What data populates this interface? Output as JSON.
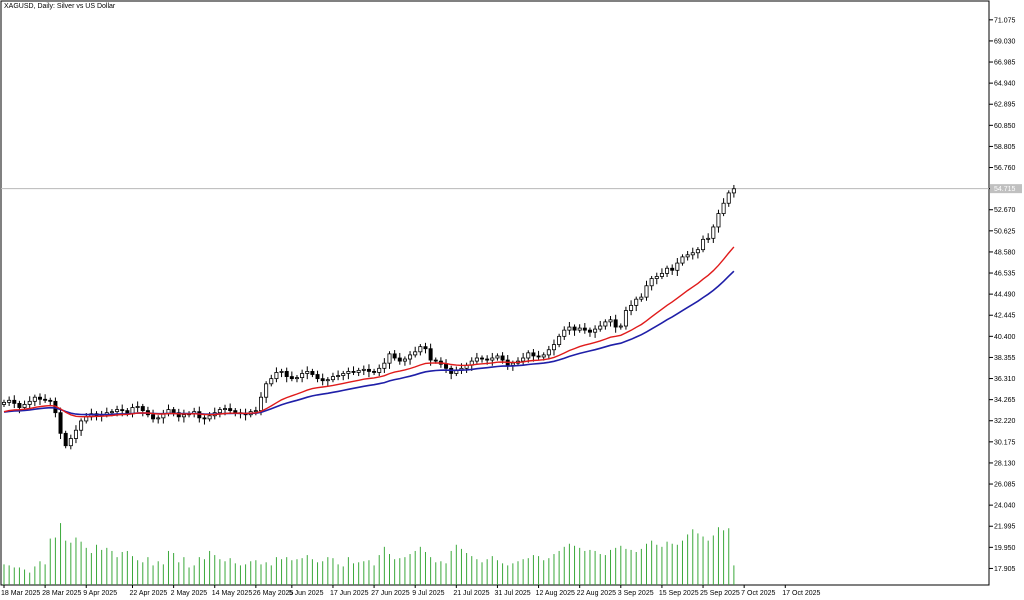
{
  "window": {
    "symbol_label": "XAGUSD, Daily:  Silver vs US Dollar"
  },
  "colors": {
    "background": "#ffffff",
    "frame": "#000000",
    "candle_outline": "#000000",
    "candle_bull_fill": "#ffffff",
    "candle_bear_fill": "#000000",
    "ma_fast": "#e01b1b",
    "ma_slow": "#1f1fa8",
    "volume": "#3aa83a",
    "last_price_line": "#b8b8b8",
    "last_price_tag_bg": "#c0c0c0",
    "last_price_tag_text": "#ffffff"
  },
  "chart_data": {
    "type": "candlestick",
    "symbol": "XAGUSD",
    "timeframe": "Daily",
    "ylim": [
      17.0,
      72.0
    ],
    "y_ticks": [
      "71.075",
      "69.030",
      "66.985",
      "64.940",
      "62.895",
      "60.850",
      "58.805",
      "56.760",
      "54.715",
      "52.670",
      "50.625",
      "48.580",
      "46.535",
      "44.490",
      "42.445",
      "40.400",
      "38.355",
      "36.310",
      "34.265",
      "32.220",
      "30.175",
      "28.130",
      "26.085",
      "24.040",
      "21.995",
      "19.950",
      "17.905"
    ],
    "last_price": "54.715",
    "x_ticks": [
      {
        "label": "18 Mar 2025",
        "index": 0
      },
      {
        "label": "28 Mar 2025",
        "index": 8
      },
      {
        "label": "9 Apr 2025",
        "index": 16
      },
      {
        "label": "22 Apr 2025",
        "index": 25
      },
      {
        "label": "2 May 2025",
        "index": 33
      },
      {
        "label": "14 May 2025",
        "index": 41
      },
      {
        "label": "26 May 2025",
        "index": 49
      },
      {
        "label": "5 Jun 2025",
        "index": 56
      },
      {
        "label": "17 Jun 2025",
        "index": 64
      },
      {
        "label": "27 Jun 2025",
        "index": 72
      },
      {
        "label": "9 Jul 2025",
        "index": 80
      },
      {
        "label": "21 Jul 2025",
        "index": 88
      },
      {
        "label": "31 Jul 2025",
        "index": 96
      },
      {
        "label": "12 Aug 2025",
        "index": 104
      },
      {
        "label": "22 Aug 2025",
        "index": 112
      },
      {
        "label": "3 Sep 2025",
        "index": 120
      },
      {
        "label": "15 Sep 2025",
        "index": 128
      },
      {
        "label": "25 Sep 2025",
        "index": 136
      },
      {
        "label": "7 Oct 2025",
        "index": 144
      },
      {
        "label": "17 Oct 2025",
        "index": 152
      }
    ],
    "close": [
      34.0,
      34.2,
      33.9,
      33.5,
      33.8,
      34.1,
      34.5,
      34.3,
      34.2,
      34.1,
      33.0,
      31.0,
      29.8,
      30.5,
      31.3,
      32.2,
      32.6,
      32.9,
      32.7,
      32.8,
      33.0,
      33.1,
      33.3,
      33.2,
      32.9,
      33.5,
      33.6,
      33.2,
      32.8,
      32.4,
      32.5,
      32.9,
      33.3,
      33.0,
      32.6,
      32.8,
      32.9,
      33.1,
      32.5,
      32.4,
      32.7,
      33.0,
      33.3,
      33.4,
      33.2,
      33.0,
      32.9,
      32.8,
      33.1,
      33.2,
      34.5,
      35.8,
      36.3,
      36.9,
      37.0,
      36.5,
      36.3,
      36.4,
      36.8,
      37.0,
      36.7,
      36.3,
      36.1,
      36.2,
      36.5,
      36.6,
      36.8,
      37.0,
      36.9,
      37.1,
      37.2,
      37.0,
      36.9,
      37.3,
      37.8,
      38.7,
      38.3,
      38.0,
      38.2,
      38.6,
      38.9,
      39.4,
      39.2,
      38.1,
      38.0,
      37.7,
      37.3,
      36.8,
      37.1,
      37.3,
      37.6,
      38.0,
      38.3,
      38.2,
      38.1,
      38.3,
      38.5,
      38.1,
      37.6,
      37.8,
      38.0,
      38.3,
      38.8,
      38.5,
      38.4,
      38.6,
      39.1,
      39.6,
      40.4,
      41.0,
      41.3,
      41.0,
      41.2,
      41.0,
      40.8,
      41.1,
      41.4,
      41.8,
      42.0,
      41.3,
      41.4,
      42.9,
      43.4,
      44.0,
      44.2,
      45.3,
      46.0,
      46.2,
      46.5,
      47.0,
      46.8,
      47.5,
      48.1,
      48.3,
      48.5,
      48.8,
      49.8,
      49.9,
      51.0,
      52.3,
      53.3,
      54.3,
      54.7
    ],
    "volume": [
      18.3,
      18.2,
      18.0,
      18.0,
      17.8,
      17.5,
      18.1,
      18.6,
      18.3,
      20.8,
      20.9,
      22.3,
      20.6,
      20.4,
      20.9,
      20.5,
      19.9,
      19.4,
      20.2,
      19.7,
      19.9,
      19.6,
      19.0,
      19.5,
      19.6,
      19.1,
      18.7,
      18.5,
      19.0,
      18.2,
      18.6,
      18.3,
      19.6,
      19.4,
      18.5,
      19.0,
      18.0,
      18.2,
      19.0,
      18.8,
      19.6,
      19.2,
      18.8,
      18.6,
      18.9,
      18.4,
      18.2,
      18.3,
      18.6,
      18.7,
      18.3,
      18.5,
      18.2,
      19.0,
      18.8,
      19.0,
      18.7,
      18.8,
      18.9,
      19.2,
      18.8,
      18.5,
      18.6,
      19.0,
      18.9,
      18.3,
      18.1,
      19.0,
      18.4,
      18.5,
      18.6,
      18.7,
      18.2,
      19.2,
      20.0,
      19.3,
      18.8,
      18.9,
      19.0,
      19.3,
      19.6,
      20.0,
      19.5,
      19.0,
      18.5,
      18.6,
      18.4,
      19.6,
      20.2,
      19.8,
      19.4,
      19.1,
      18.8,
      18.5,
      18.8,
      19.1,
      18.7,
      18.4,
      18.2,
      18.4,
      18.6,
      18.8,
      18.9,
      19.2,
      19.1,
      18.7,
      18.9,
      19.3,
      19.6,
      20.0,
      20.3,
      20.1,
      19.9,
      19.6,
      19.7,
      19.6,
      19.3,
      19.2,
      19.7,
      19.9,
      20.1,
      19.8,
      19.7,
      19.5,
      19.8,
      20.3,
      20.6,
      20.2,
      20.0,
      20.5,
      20.3,
      20.2,
      20.6,
      21.2,
      21.7,
      21.3,
      21.0,
      20.6,
      21.1,
      21.9,
      21.6,
      21.8,
      18.2
    ],
    "ma_fast_label": "",
    "ma_slow_label": ""
  }
}
